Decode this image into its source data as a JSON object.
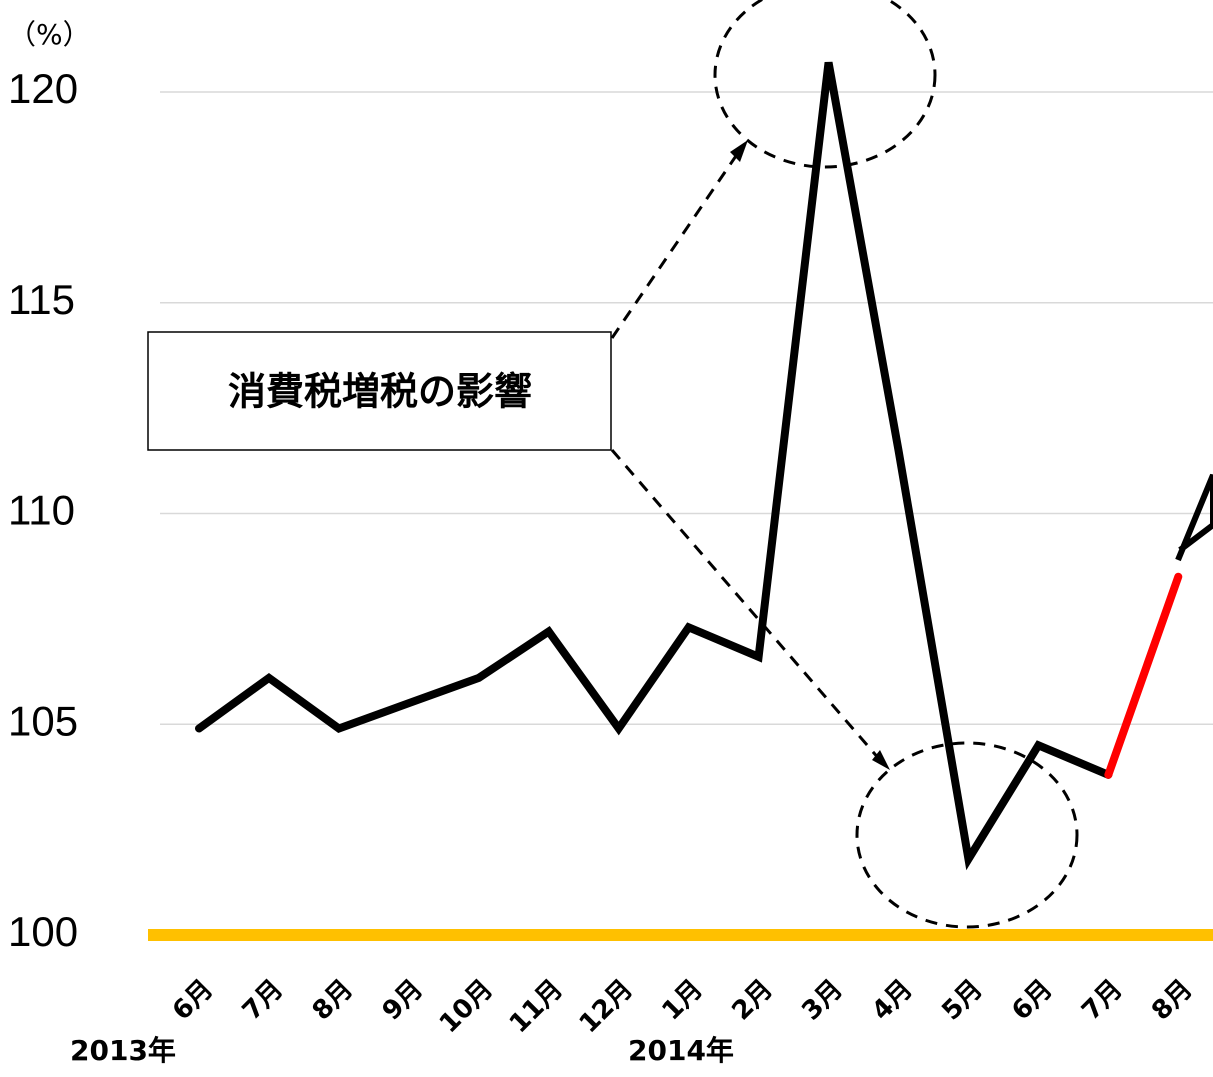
{
  "chart_data": {
    "type": "line",
    "unit_label": "（%）",
    "categories": [
      "6月",
      "7月",
      "8月",
      "9月",
      "10月",
      "11月",
      "12月",
      "1月",
      "2月",
      "3月",
      "4月",
      "5月",
      "6月",
      "7月",
      "8月"
    ],
    "year_labels": [
      "2013年",
      "2014年"
    ],
    "series": [
      {
        "color": "#000000",
        "values": [
          104.9,
          106.1,
          104.9,
          105.5,
          106.1,
          107.2,
          104.9,
          107.3,
          106.6,
          120.7,
          111.5,
          101.8,
          104.5,
          103.8,
          null
        ]
      },
      {
        "color": "#ff0000",
        "values": [
          null,
          null,
          null,
          null,
          null,
          null,
          null,
          null,
          null,
          null,
          null,
          null,
          null,
          103.8,
          108.5
        ]
      }
    ],
    "baseline": {
      "value": 100,
      "color": "#ffc000"
    },
    "annotation": "消費税増税の影響",
    "ylim": [
      100,
      120
    ],
    "yticks": [
      100,
      105,
      110,
      115,
      120
    ],
    "grid": true
  }
}
